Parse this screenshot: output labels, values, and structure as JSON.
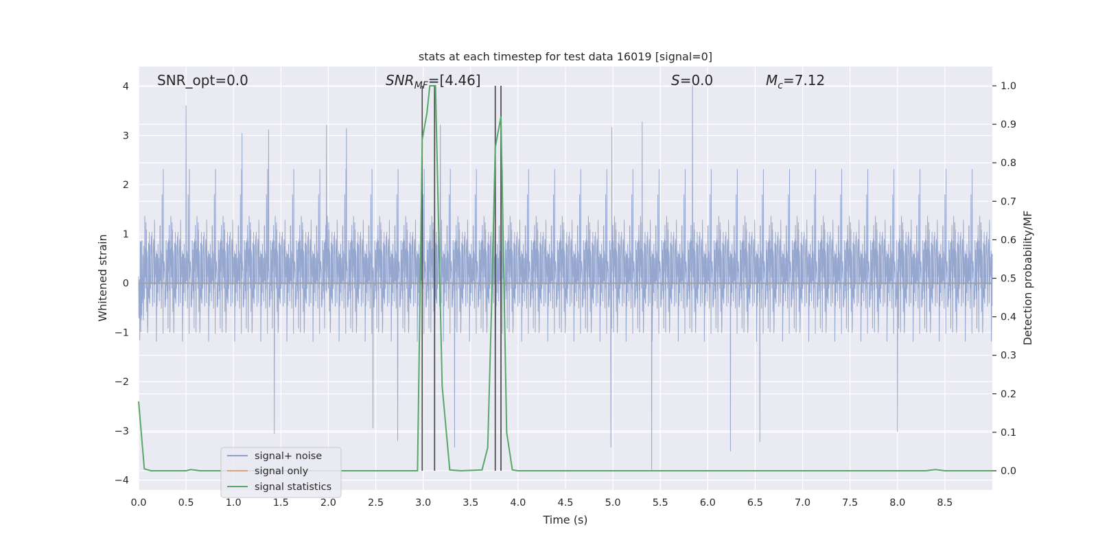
{
  "chart_data": {
    "type": "line",
    "title": "stats at each timestep for test data 16019 [signal=0]",
    "xlabel": "Time (s)",
    "ylabel_left": "Whitened strain",
    "ylabel_right": "Detection probability/MF",
    "xlim": [
      0,
      9.0
    ],
    "ylim_left": [
      -4.2,
      4.4
    ],
    "ylim_right": [
      -0.05,
      1.05
    ],
    "xticks": [
      0.0,
      0.5,
      1.0,
      1.5,
      2.0,
      2.5,
      3.0,
      3.5,
      4.0,
      4.5,
      5.0,
      5.5,
      6.0,
      6.5,
      7.0,
      7.5,
      8.0,
      8.5
    ],
    "xtick_labels": [
      "0.0",
      "0.5",
      "1.0",
      "1.5",
      "2.0",
      "2.5",
      "3.0",
      "3.5",
      "4.0",
      "4.5",
      "5.0",
      "5.5",
      "6.0",
      "6.5",
      "7.0",
      "7.5",
      "8.0",
      "8.5"
    ],
    "yticks_left": [
      4,
      3,
      2,
      1,
      0,
      -1,
      -2,
      -3,
      -4
    ],
    "ytick_labels_left": [
      "4",
      "3",
      "2",
      "1",
      "0",
      "−1",
      "−2",
      "−3",
      "−4"
    ],
    "yticks_right": [
      1.0,
      0.9,
      0.8,
      0.7,
      0.6,
      0.5,
      0.4,
      0.3,
      0.2,
      0.1,
      0.0
    ],
    "ytick_labels_right": [
      "1.0",
      "0.9",
      "0.8",
      "0.7",
      "0.6",
      "0.5",
      "0.4",
      "0.3",
      "0.2",
      "0.1",
      "0.0"
    ],
    "grid": true,
    "legend_position": "lower-left",
    "annotations": [
      {
        "id": "snr-opt",
        "text": "SNR_opt=0.0"
      },
      {
        "id": "snr-mf",
        "main": "SNR",
        "sub": "MF",
        "rest": "=[4.46]"
      },
      {
        "id": "s-stat",
        "main": "S",
        "rest": "=0.0"
      },
      {
        "id": "mc",
        "main": "M",
        "sub": "c",
        "rest": "=7.12"
      }
    ],
    "vertical_lines_x": [
      2.99,
      3.12,
      3.76,
      3.82
    ],
    "vertical_lines_range": [
      0.0,
      1.0
    ],
    "series": [
      {
        "name": "signal+ noise",
        "color": "#8da0cb",
        "axis": "left",
        "description": "whitened strain noise, roughly within [-3.9, 4.0]",
        "spike_x": [
          0.5,
          1.09,
          1.37,
          1.98,
          2.19,
          3.18,
          4.99,
          5.31,
          5.84,
          2.47,
          1.43,
          2.73,
          3.33,
          4.98,
          5.41,
          6.24,
          6.55,
          8.0
        ],
        "spike_y": [
          3.61,
          3.05,
          3.12,
          3.22,
          3.15,
          3.22,
          3.17,
          3.28,
          4.02,
          -2.95,
          -3.06,
          -3.2,
          -3.34,
          -3.34,
          -3.79,
          -3.42,
          -3.23,
          -3.02
        ]
      },
      {
        "name": "signal only",
        "color": "#dd9f79",
        "axis": "left",
        "x": [
          0,
          9.0
        ],
        "y": [
          0,
          0
        ]
      },
      {
        "name": "signal statistics",
        "color": "#55a868",
        "axis": "right",
        "x": [
          0.0,
          0.06,
          0.13,
          0.3,
          0.5,
          0.55,
          0.65,
          1.0,
          1.5,
          2.0,
          2.5,
          2.94,
          2.99,
          3.04,
          3.07,
          3.1,
          3.13,
          3.2,
          3.28,
          3.4,
          3.62,
          3.68,
          3.72,
          3.76,
          3.82,
          3.88,
          3.94,
          4.0,
          5.0,
          6.0,
          7.0,
          8.0,
          8.3,
          8.4,
          8.5,
          9.0
        ],
        "y": [
          0.18,
          0.005,
          0.0,
          0.0,
          0.0,
          0.003,
          0.0,
          0.0,
          0.0,
          0.0,
          0.0,
          0.0,
          0.86,
          0.93,
          1.0,
          1.0,
          1.0,
          0.22,
          0.002,
          0.0,
          0.002,
          0.06,
          0.42,
          0.84,
          0.92,
          0.1,
          0.002,
          0.0,
          0.0,
          0.0,
          0.0,
          0.0,
          0.0,
          0.003,
          0.0,
          0.0
        ]
      }
    ]
  }
}
